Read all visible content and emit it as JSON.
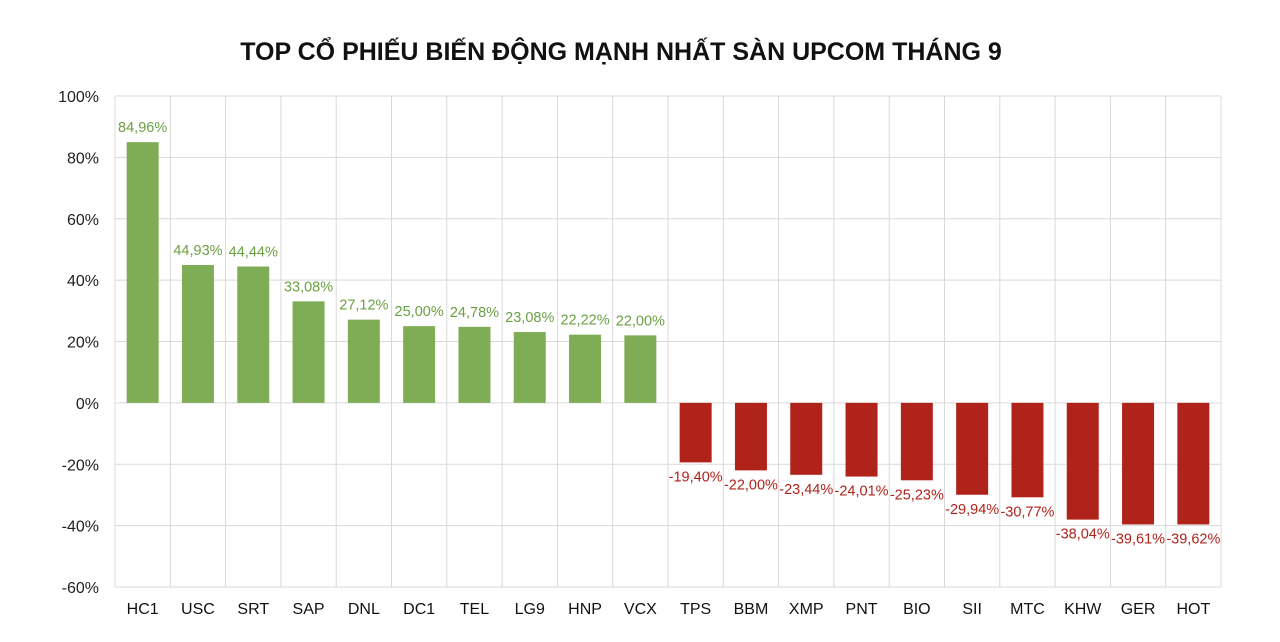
{
  "chart_data": {
    "type": "bar",
    "title": "TOP CỔ PHIẾU BIẾN ĐỘNG MẠNH NHẤT SÀN UPCOM THÁNG 9",
    "xlabel": "",
    "ylabel": "",
    "ylim": [
      -60,
      100
    ],
    "yticks": [
      100,
      80,
      60,
      40,
      20,
      0,
      -20,
      -40,
      -60
    ],
    "ytick_labels": [
      "100%",
      "80%",
      "60%",
      "40%",
      "20%",
      "0%",
      "-20%",
      "-40%",
      "-60%"
    ],
    "grid": true,
    "legend": "none",
    "categories": [
      "HC1",
      "USC",
      "SRT",
      "SAP",
      "DNL",
      "DC1",
      "TEL",
      "LG9",
      "HNP",
      "VCX",
      "TPS",
      "BBM",
      "XMP",
      "PNT",
      "BIO",
      "SII",
      "MTC",
      "KHW",
      "GER",
      "HOT"
    ],
    "values": [
      84.96,
      44.93,
      44.44,
      33.08,
      27.12,
      25.0,
      24.78,
      23.08,
      22.22,
      22.0,
      -19.4,
      -22.0,
      -23.44,
      -24.01,
      -25.23,
      -29.94,
      -30.77,
      -38.04,
      -39.61,
      -39.62
    ],
    "data_labels": [
      "84,96%",
      "44,93%",
      "44,44%",
      "33,08%",
      "27,12%",
      "25,00%",
      "24,78%",
      "23,08%",
      "22,22%",
      "22,00%",
      "-19,40%",
      "-22,00%",
      "-23,44%",
      "-24,01%",
      "-25,23%",
      "-29,94%",
      "-30,77%",
      "-38,04%",
      "-39,61%",
      "-39,62%"
    ],
    "colors": {
      "positive_bar": "#7ead55",
      "negative_bar": "#b0231b",
      "positive_label": "#6aa043",
      "negative_label": "#b0231b",
      "grid": "#d9d9d9"
    }
  }
}
